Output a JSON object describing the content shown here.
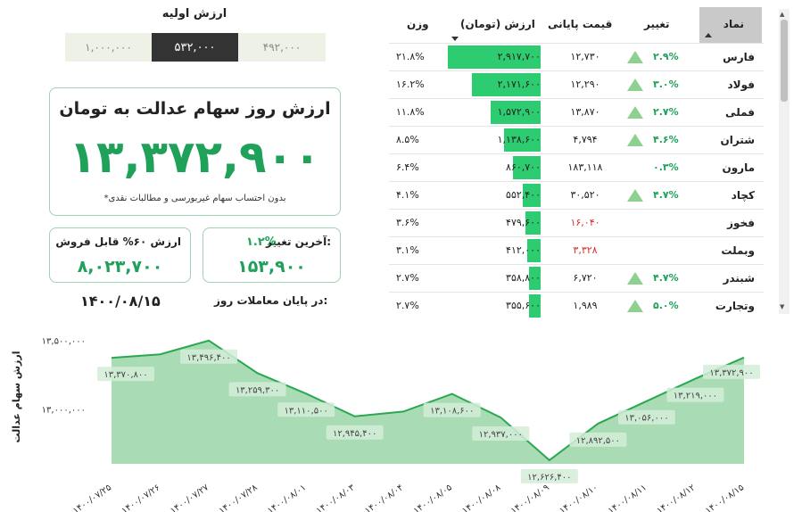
{
  "initial_value": {
    "title": "ارزش اولیه",
    "segments": [
      "۱,۰۰۰,۰۰۰",
      "۵۳۲,۰۰۰",
      "۴۹۲,۰۰۰"
    ]
  },
  "main_card": {
    "title": "ارزش روز سهام عدالت به تومان",
    "value": "۱۳,۳۷۲,۹۰۰",
    "note": "*بدون احتساب سهام غیربورسی و مطالبات نقدی"
  },
  "sellable_card": {
    "label": "ارزش ۶۰% قابل فروش",
    "value": "۸,۰۲۳,۷۰۰"
  },
  "change_card": {
    "label": "آخرین تغییر:",
    "percent": "۱.۲%",
    "value": "۱۵۳,۹۰۰"
  },
  "date": {
    "label": "در پایان معاملات روز:",
    "value": "۱۴۰۰/۰۸/۱۵"
  },
  "table": {
    "headers": {
      "symbol": "نماد",
      "change": "تغییر",
      "price": "قیمت پایانی",
      "value": "ارزش (تومان)",
      "weight": "وزن"
    },
    "rows": [
      {
        "symbol": "فارس",
        "change": "۲.۹%",
        "up": true,
        "price": "۱۲,۷۳۰",
        "price_red": false,
        "value": "۲,۹۱۷,۷۰۰",
        "bar": 1.0,
        "weight": "۲۱.۸%"
      },
      {
        "symbol": "فولاد",
        "change": "۳.۰%",
        "up": true,
        "price": "۱۲,۲۹۰",
        "price_red": false,
        "value": "۲,۱۷۱,۶۰۰",
        "bar": 0.744,
        "weight": "۱۶.۲%"
      },
      {
        "symbol": "فملی",
        "change": "۲.۷%",
        "up": true,
        "price": "۱۳,۸۷۰",
        "price_red": false,
        "value": "۱,۵۷۲,۹۰۰",
        "bar": 0.539,
        "weight": "۱۱.۸%"
      },
      {
        "symbol": "شتران",
        "change": "۴.۶%",
        "up": true,
        "price": "۴,۷۹۴",
        "price_red": false,
        "value": "۱,۱۳۸,۶۰۰",
        "bar": 0.39,
        "weight": "۸.۵%"
      },
      {
        "symbol": "مارون",
        "change": "۰.۳%",
        "up": false,
        "price": "۱۸۳,۱۱۸",
        "price_red": false,
        "value": "۸۶۰,۷۰۰",
        "bar": 0.295,
        "weight": "۶.۴%"
      },
      {
        "symbol": "کچاد",
        "change": "۴.۷%",
        "up": true,
        "price": "۳۰,۵۲۰",
        "price_red": false,
        "value": "۵۵۲,۴۰۰",
        "bar": 0.189,
        "weight": "۴.۱%"
      },
      {
        "symbol": "فخوز",
        "change": "",
        "up": false,
        "price": "۱۶,۰۴۰",
        "price_red": true,
        "value": "۴۷۹,۶۰۰",
        "bar": 0.164,
        "weight": "۳.۶%"
      },
      {
        "symbol": "وبملت",
        "change": "",
        "up": false,
        "price": "۳,۳۲۸",
        "price_red": true,
        "value": "۴۱۲,۰۰۰",
        "bar": 0.141,
        "weight": "۳.۱%"
      },
      {
        "symbol": "شبندر",
        "change": "۴.۷%",
        "up": true,
        "price": "۶,۷۲۰",
        "price_red": false,
        "value": "۳۵۸,۸۰۰",
        "bar": 0.123,
        "weight": "۲.۷%"
      },
      {
        "symbol": "وتجارت",
        "change": "۵.۰%",
        "up": true,
        "price": "۱,۹۸۹",
        "price_red": false,
        "value": "۳۵۵,۶۰۰",
        "bar": 0.122,
        "weight": "۲.۷%"
      }
    ]
  },
  "colors": {
    "accent": "#1fa15a",
    "bar": "#2ecc71",
    "negative": "#e02b2b",
    "area": "#a9dcb4",
    "line": "#2aa84f"
  },
  "chart_data": {
    "type": "area",
    "ylabel": "ارزش سهام عدالت",
    "ytick_labels": [
      "۱۳,۵۰۰,۰۰۰",
      "۱۳,۰۰۰,۰۰۰"
    ],
    "yticks": [
      13500000,
      13000000
    ],
    "ylim": [
      12600000,
      13560000
    ],
    "x": [
      "۱۴۰۰/۰۷/۲۵",
      "۱۴۰۰/۰۷/۲۶",
      "۱۴۰۰/۰۷/۲۷",
      "۱۴۰۰/۰۷/۲۸",
      "۱۴۰۰/۰۸/۰۱",
      "۱۴۰۰/۰۸/۰۳",
      "۱۴۰۰/۰۸/۰۴",
      "۱۴۰۰/۰۸/۰۵",
      "۱۴۰۰/۰۸/۰۸",
      "۱۴۰۰/۰۸/۰۹",
      "۱۴۰۰/۰۸/۱۰",
      "۱۴۰۰/۰۸/۱۱",
      "۱۴۰۰/۰۸/۱۲",
      "۱۴۰۰/۰۸/۱۵"
    ],
    "y": [
      13370800,
      13396400,
      13496400,
      13259300,
      13110500,
      12945400,
      12980000,
      13108600,
      12937000,
      12626400,
      12892500,
      13056000,
      13219000,
      13372900
    ],
    "data_labels": [
      {
        "index": 0,
        "text": "۱۳,۳۷۰,۸۰۰"
      },
      {
        "index": 2,
        "text": "۱۳,۴۹۶,۴۰۰"
      },
      {
        "index": 3,
        "text": "۱۳,۲۵۹,۳۰۰"
      },
      {
        "index": 4,
        "text": "۱۳,۱۱۰,۵۰۰"
      },
      {
        "index": 5,
        "text": "۱۲,۹۴۵,۴۰۰"
      },
      {
        "index": 7,
        "text": "۱۳,۱۰۸,۶۰۰"
      },
      {
        "index": 8,
        "text": "۱۲,۹۳۷,۰۰۰"
      },
      {
        "index": 9,
        "text": "۱۲,۶۲۶,۴۰۰"
      },
      {
        "index": 10,
        "text": "۱۲,۸۹۲,۵۰۰"
      },
      {
        "index": 11,
        "text": "۱۳,۰۵۶,۰۰۰"
      },
      {
        "index": 12,
        "text": "۱۳,۲۱۹,۰۰۰"
      },
      {
        "index": 13,
        "text": "۱۳,۳۷۲,۹۰۰"
      }
    ]
  }
}
